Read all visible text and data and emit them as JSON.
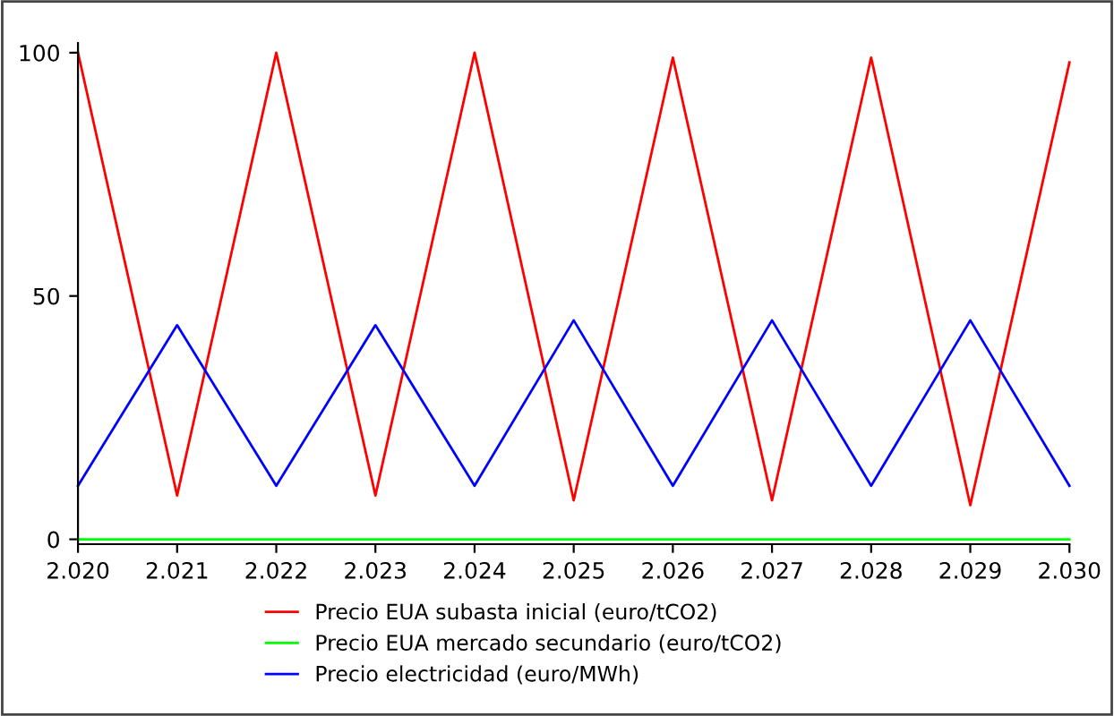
{
  "chart_data": {
    "type": "line",
    "x": [
      2020,
      2021,
      2022,
      2023,
      2024,
      2025,
      2026,
      2027,
      2028,
      2029,
      2030
    ],
    "series": [
      {
        "name": "Precio EUA subasta inicial (euro/tCO2)",
        "color": "#ff0000",
        "values": [
          100,
          9,
          100,
          9,
          100,
          8,
          99,
          8,
          99,
          7,
          98
        ]
      },
      {
        "name": "Precio EUA mercado secundario (euro/tCO2)",
        "color": "#00ff00",
        "values": [
          0,
          0,
          0,
          0,
          0,
          0,
          0,
          0,
          0,
          0,
          0
        ]
      },
      {
        "name": "Precio electricidad (euro/MWh)",
        "color": "#0000ff",
        "values": [
          11,
          44,
          11,
          44,
          11,
          45,
          11,
          45,
          11,
          45,
          11
        ]
      }
    ],
    "xlim": [
      2020,
      2030
    ],
    "xticks": [
      {
        "value": 2020,
        "label": "2.020"
      },
      {
        "value": 2021,
        "label": "2.021"
      },
      {
        "value": 2022,
        "label": "2.022"
      },
      {
        "value": 2023,
        "label": "2.023"
      },
      {
        "value": 2024,
        "label": "2.024"
      },
      {
        "value": 2025,
        "label": "2.025"
      },
      {
        "value": 2026,
        "label": "2.026"
      },
      {
        "value": 2027,
        "label": "2.027"
      },
      {
        "value": 2028,
        "label": "2.028"
      },
      {
        "value": 2029,
        "label": "2.029"
      },
      {
        "value": 2030,
        "label": "2.030"
      }
    ],
    "ylim": [
      -1,
      102
    ],
    "yticks": [
      0,
      50,
      100
    ],
    "grid": false,
    "legend": "bottom",
    "marker": "none",
    "line_style": "solid"
  }
}
